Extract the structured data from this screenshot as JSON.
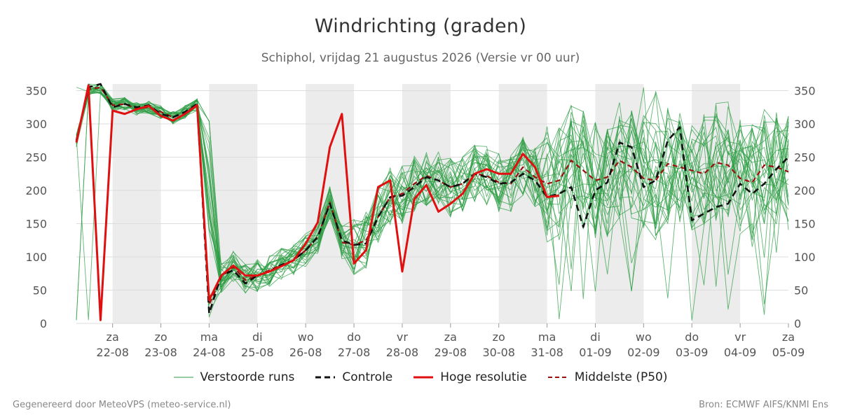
{
  "header": {
    "title": "Windrichting (graden)",
    "subtitle": "Schiphol, vrijdag 21 augustus 2026 (Versie vr 00 uur)"
  },
  "legend": {
    "ensemble": "Verstoorde runs",
    "control": "Controle",
    "hires": "Hoge resolutie",
    "median": "Middelste (P50)"
  },
  "footer": {
    "left": "Gegenereerd door MeteoVPS (meteo-service.nl)",
    "right": "Bron: ECMWF AIFS/KNMI Ens"
  },
  "colors": {
    "ensemble": "#2e9e44",
    "control": "#111111",
    "hires": "#e01010",
    "median": "#9b1010",
    "weekend_band": "#ececec",
    "grid": "#dddddd"
  },
  "chart_data": {
    "type": "line",
    "title": "Windrichting (graden)",
    "ylim": [
      0,
      360
    ],
    "yticks": [
      0,
      50,
      100,
      150,
      200,
      250,
      300,
      350
    ],
    "xlim_days": [
      -0.75,
      14
    ],
    "day_ticks": [
      {
        "day": "za",
        "date": "22-08"
      },
      {
        "day": "zo",
        "date": "23-08"
      },
      {
        "day": "ma",
        "date": "24-08"
      },
      {
        "day": "di",
        "date": "25-08"
      },
      {
        "day": "wo",
        "date": "26-08"
      },
      {
        "day": "do",
        "date": "27-08"
      },
      {
        "day": "vr",
        "date": "28-08"
      },
      {
        "day": "za",
        "date": "29-08"
      },
      {
        "day": "zo",
        "date": "30-08"
      },
      {
        "day": "ma",
        "date": "31-08"
      },
      {
        "day": "di",
        "date": "01-09"
      },
      {
        "day": "wo",
        "date": "02-09"
      },
      {
        "day": "do",
        "date": "03-09"
      },
      {
        "day": "vr",
        "date": "04-09"
      },
      {
        "day": "za",
        "date": "05-09"
      }
    ],
    "weekend_shading": [
      [
        0,
        1
      ],
      [
        2,
        3
      ],
      [
        4,
        5
      ],
      [
        6,
        7
      ],
      [
        8,
        9
      ],
      [
        10,
        11
      ],
      [
        12,
        13
      ]
    ],
    "grid": true,
    "legend_position": "bottom",
    "series": [
      {
        "name": "Controle",
        "style": "dashed",
        "x": [
          -0.75,
          -0.5,
          -0.25,
          0,
          0.25,
          0.5,
          0.75,
          1,
          1.25,
          1.5,
          1.75,
          2,
          2.25,
          2.5,
          2.75,
          3,
          3.25,
          3.5,
          3.75,
          4,
          4.25,
          4.5,
          4.75,
          5,
          5.25,
          5.5,
          5.75,
          6,
          6.25,
          6.5,
          6.75,
          7,
          7.25,
          7.5,
          7.75,
          8,
          8.25,
          8.5,
          8.75,
          9,
          9.25,
          9.5,
          9.75,
          10,
          10.25,
          10.5,
          10.75,
          11,
          11.25,
          11.5,
          11.75,
          12,
          12.25,
          12.5,
          12.75,
          13,
          13.25,
          13.5,
          13.75,
          14
        ],
        "y": [
          275,
          355,
          360,
          325,
          330,
          325,
          328,
          315,
          310,
          318,
          330,
          15,
          72,
          80,
          60,
          72,
          78,
          88,
          95,
          110,
          130,
          180,
          125,
          118,
          120,
          160,
          190,
          192,
          205,
          220,
          215,
          205,
          210,
          225,
          220,
          210,
          212,
          225,
          215,
          190,
          195,
          205,
          145,
          200,
          212,
          272,
          265,
          205,
          215,
          275,
          295,
          155,
          165,
          175,
          180,
          210,
          195,
          210,
          232,
          250
        ]
      },
      {
        "name": "Hoge resolutie",
        "style": "solid",
        "x": [
          -0.75,
          -0.5,
          -0.25,
          0,
          0.25,
          0.5,
          0.75,
          1,
          1.25,
          1.5,
          1.75,
          2,
          2.25,
          2.5,
          2.75,
          3,
          3.25,
          3.5,
          3.75,
          4,
          4.25,
          4.5,
          4.75,
          5,
          5.25,
          5.5,
          5.75,
          6,
          6.25,
          6.5,
          6.75,
          7,
          7.25,
          7.5,
          7.75,
          8,
          8.25,
          8.5,
          8.75,
          9,
          9.25
        ],
        "y": [
          272,
          358,
          5,
          320,
          315,
          322,
          327,
          312,
          305,
          315,
          328,
          35,
          72,
          87,
          72,
          72,
          78,
          86,
          95,
          120,
          152,
          265,
          315,
          90,
          110,
          205,
          215,
          78,
          187,
          208,
          168,
          180,
          195,
          225,
          232,
          225,
          225,
          255,
          235,
          190,
          192
        ]
      },
      {
        "name": "Middelste (P50)",
        "style": "dashed",
        "x": [
          -0.75,
          -0.5,
          -0.25,
          0,
          0.25,
          0.5,
          0.75,
          1,
          1.25,
          1.5,
          1.75,
          2,
          2.25,
          2.5,
          2.75,
          3,
          3.25,
          3.5,
          3.75,
          4,
          4.25,
          4.5,
          4.75,
          5,
          5.25,
          5.5,
          5.75,
          6,
          6.25,
          6.5,
          6.75,
          7,
          7.25,
          7.5,
          7.75,
          8,
          8.25,
          8.5,
          8.75,
          9,
          9.25,
          9.5,
          9.75,
          10,
          10.25,
          10.5,
          10.75,
          11,
          11.25,
          11.5,
          11.75,
          12,
          12.25,
          12.5,
          12.75,
          13,
          13.25,
          13.5,
          13.75,
          14
        ],
        "y": [
          275,
          352,
          355,
          328,
          330,
          323,
          325,
          318,
          310,
          318,
          328,
          28,
          70,
          85,
          65,
          72,
          80,
          88,
          95,
          110,
          130,
          182,
          122,
          118,
          125,
          160,
          190,
          195,
          210,
          222,
          215,
          205,
          210,
          225,
          222,
          212,
          210,
          235,
          220,
          210,
          215,
          245,
          230,
          215,
          220,
          245,
          235,
          218,
          215,
          240,
          235,
          230,
          225,
          242,
          238,
          218,
          212,
          238,
          235,
          228
        ]
      }
    ],
    "ensemble_member_count": 30
  }
}
